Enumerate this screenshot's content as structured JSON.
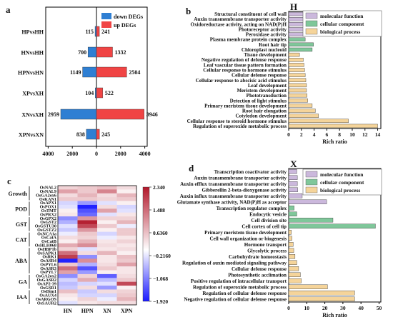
{
  "panels": {
    "a": "a",
    "b": "b",
    "c": "c",
    "d": "d",
    "H": "H",
    "X": "X"
  },
  "colors": {
    "down": "#2f7fd3",
    "up": "#f04444",
    "mf": "#cbb8dc",
    "cc": "#7fc79a",
    "bp": "#f5d49a",
    "heat_high": "#b2182b",
    "heat_mid": "#ffffff",
    "heat_low": "#1a1aff"
  },
  "chart_data": [
    {
      "id": "a",
      "type": "bar",
      "orientation": "horizontal",
      "categories": [
        "HPvsHH",
        "HNvsHH",
        "HPNvsHN",
        "XPvsXH",
        "XNvsXH",
        "XPNvsXN"
      ],
      "series": [
        {
          "name": "down DEGs",
          "values": [
            115,
            700,
            1149,
            104,
            2959,
            838
          ]
        },
        {
          "name": "up DEGs",
          "values": [
            241,
            1332,
            2504,
            522,
            3946,
            245
          ]
        }
      ],
      "xticks": [
        "4000",
        "2000",
        "0",
        "2000",
        "4000"
      ],
      "xlim": [
        -4200,
        4200
      ],
      "legend": "top-right"
    },
    {
      "id": "b",
      "type": "bar",
      "orientation": "horizontal",
      "title": "H",
      "xlabel": "Rich ratio",
      "xticks": [
        "0",
        "2",
        "4",
        "6",
        "8",
        "10",
        "12",
        "14"
      ],
      "xlim": [
        0,
        14.5
      ],
      "legend": [
        "molecular function",
        "cellular component",
        "biological process"
      ],
      "categories": [
        "Structural constituent of cell wall",
        "Auxin transmembrane transporter activity",
        "Oxidoreductase activity, acting on NAD(P)H",
        "Photoreceptor activity",
        "Peroxidase activity",
        "Plasma membrane protein complex",
        "Root hair tip",
        "Chloroplast nucleoid",
        "Tissue development",
        "Negative regulation of defense response",
        "Leaf vascular tissue pattern formation",
        "Cellular response to hormone stimulus",
        "Cellular defense response",
        "Cellular response to abscisic acid stimulus",
        "Leaf development",
        "Meristem development",
        "Phototransduction",
        "Detection of light stimulus",
        "Primary meristem tissue development",
        "Root hair elongation",
        "Cotyledon development",
        "Cellular response to steroid hormone stimulus",
        "Regulation of superoxide metabolic process"
      ],
      "values": [
        2.7,
        3.6,
        4.0,
        4.1,
        5.9,
        2.6,
        3.9,
        3.7,
        1.7,
        2.3,
        2.4,
        2.5,
        2.6,
        2.7,
        2.8,
        2.8,
        2.9,
        3.0,
        3.7,
        4.2,
        4.7,
        9.4,
        14.0
      ],
      "groups": [
        "mf",
        "mf",
        "mf",
        "mf",
        "mf",
        "cc",
        "cc",
        "cc",
        "bp",
        "bp",
        "bp",
        "bp",
        "bp",
        "bp",
        "bp",
        "bp",
        "bp",
        "bp",
        "bp",
        "bp",
        "bp",
        "bp",
        "bp"
      ]
    },
    {
      "id": "c",
      "type": "heatmap",
      "columns": [
        "HN",
        "HPN",
        "XN",
        "XPN"
      ],
      "groups": [
        {
          "name": "Growth",
          "genes": [
            "OsNAL2",
            "OsNAL9",
            "OsGA2ox6",
            "OsKAN1"
          ]
        },
        {
          "name": "POD",
          "genes": [
            "OsAPX1",
            "OsPOX1",
            "OsTMT",
            "OsPRX2"
          ]
        },
        {
          "name": "GST",
          "genes": [
            "OsGPX2",
            "OsGST2",
            "OsGSTU30",
            "OsGSTZ2"
          ]
        },
        {
          "name": "CAT",
          "genes": [
            "OsNCA1a",
            "OsCatA",
            "OsCatB",
            "OsHLH068"
          ]
        },
        {
          "name": "ABA",
          "genes": [
            "OsHBP1b",
            "OsSAPK1",
            "OsRK1",
            "OsASR4",
            "OsPYL6",
            "OsASR3",
            "OsPYL7"
          ]
        },
        {
          "name": "GA",
          "genes": [
            "OsGA2ox2",
            "OsGASR2",
            "OsAP2-39",
            "OsGSR1"
          ]
        },
        {
          "name": "IAA",
          "genes": [
            "OsDim1",
            "OsAUX4",
            "OsARGOS",
            "OsSAUR2"
          ]
        }
      ],
      "values": [
        [
          0.45,
          0.55,
          0.65,
          0.35
        ],
        [
          0.95,
          0.55,
          1.25,
          0.15
        ],
        [
          0.35,
          0.75,
          0.35,
          0.75
        ],
        [
          0.55,
          0.55,
          0.45,
          0.55
        ],
        [
          -0.35,
          -0.85,
          -0.25,
          0.15
        ],
        [
          -0.25,
          -1.85,
          0.35,
          -0.35
        ],
        [
          0.15,
          -1.45,
          0.95,
          -0.25
        ],
        [
          0.25,
          -1.25,
          -0.25,
          0.25
        ],
        [
          -0.95,
          1.05,
          0.45,
          0.45
        ],
        [
          -0.65,
          2.25,
          0.15,
          0.75
        ],
        [
          -0.25,
          1.85,
          0.55,
          -0.15
        ],
        [
          -0.45,
          1.05,
          0.15,
          0.55
        ],
        [
          -0.15,
          0.55,
          -0.35,
          0.55
        ],
        [
          0.35,
          0.45,
          -0.15,
          0.25
        ],
        [
          0.15,
          0.75,
          0.25,
          0.45
        ],
        [
          0.85,
          1.15,
          0.35,
          0.25
        ],
        [
          0.45,
          -0.25,
          0.25,
          0.35
        ],
        [
          1.45,
          0.35,
          0.75,
          0.15
        ],
        [
          1.95,
          -0.95,
          0.25,
          0.65
        ],
        [
          -1.85,
          1.15,
          0.25,
          0.55
        ],
        [
          0.55,
          -0.65,
          0.35,
          0.95
        ],
        [
          1.45,
          -1.45,
          0.55,
          0.25
        ],
        [
          0.95,
          -0.85,
          0.15,
          0.25
        ],
        [
          -0.95,
          0.45,
          -1.35,
          0.35
        ],
        [
          -0.35,
          0.85,
          -0.55,
          0.55
        ],
        [
          -0.55,
          -0.35,
          -0.25,
          1.85
        ],
        [
          -0.45,
          0.35,
          -0.85,
          0.15
        ],
        [
          0.65,
          -0.45,
          0.35,
          0.45
        ],
        [
          0.25,
          -0.35,
          -0.35,
          0.55
        ],
        [
          0.15,
          0.45,
          -0.15,
          0.75
        ],
        [
          -0.25,
          0.25,
          0.35,
          0.35
        ]
      ],
      "colorbar": {
        "ticks": [
          "2.340",
          "1.488",
          "0.6360",
          "−0.2160",
          "−1.068",
          "−1.920"
        ],
        "min": -1.92,
        "max": 2.34
      }
    },
    {
      "id": "d",
      "type": "bar",
      "orientation": "horizontal",
      "title": "X",
      "xlabel": "Rich ratio",
      "xticks": [
        "0",
        "10",
        "20",
        "30",
        "40",
        "50"
      ],
      "xlim": [
        0,
        51
      ],
      "legend": [
        "molecular function",
        "cellular component",
        "biological process"
      ],
      "categories": [
        "Transcription coactivator activity",
        "Auxin transmembrane transporter activity",
        "Auxin efflux transmembrane transporter activity",
        "Gibberellin 2-beta-dioxygenase activity",
        "Auxin influx transmembrane transporter activity",
        "Glutamate synthase activity, NAD(P)H as acceptor",
        "Transcription regulator complex",
        "Endocytic vesicle",
        "Cell division site",
        "Cell cortex of cell tip",
        "Primary meristem tissue development",
        "Cell wall organization or biogenesis",
        "Hormone transport",
        "Glycolytic process",
        "Carbohydrate homeostasis",
        "Regulation of auxin mediated signaling pathway",
        "Cellular defense response",
        "Photosynthetic acclimation",
        "Positive regulation of intracellular transport",
        "Regulation of superoxide metabolic process",
        "Regulation of cellular defense response",
        "Negative regulation of cellular defense response"
      ],
      "values": [
        4.5,
        4.8,
        4.8,
        5.0,
        7.5,
        21.0,
        3.0,
        4.5,
        24.5,
        48.0,
        1.5,
        1.8,
        2.5,
        2.8,
        3.5,
        4.5,
        5.5,
        6.5,
        7.0,
        21.5,
        36.5,
        36.5
      ],
      "groups": [
        "mf",
        "mf",
        "mf",
        "mf",
        "mf",
        "mf",
        "cc",
        "cc",
        "cc",
        "cc",
        "bp",
        "bp",
        "bp",
        "bp",
        "bp",
        "bp",
        "bp",
        "bp",
        "bp",
        "bp",
        "bp",
        "bp"
      ]
    }
  ]
}
